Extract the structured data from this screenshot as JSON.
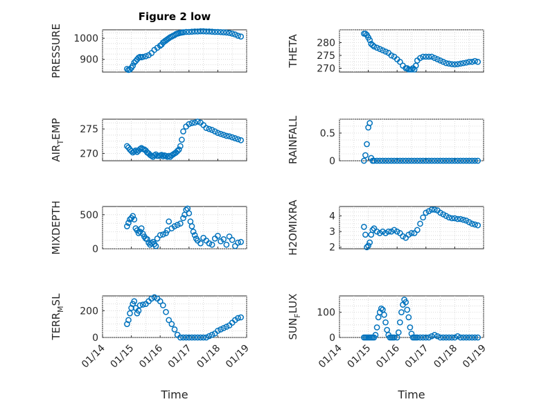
{
  "title": "Figure 2 low",
  "colors": {
    "marker": "#0072BD",
    "axis": "#262626",
    "grid": "#d0d0d0"
  },
  "x_tick_labels": [
    "01/14",
    "01/15",
    "01/16",
    "01/17",
    "01/18",
    "01/19"
  ],
  "x_label": "Time",
  "chart_data": [
    {
      "type": "scatter",
      "name": "pressure",
      "ylabel": "PRESSURE",
      "ylim": [
        840,
        1040
      ],
      "yticks": [
        900,
        1000
      ],
      "grid": true,
      "x": [
        14.85,
        14.9,
        14.95,
        15.0,
        15.05,
        15.1,
        15.15,
        15.2,
        15.25,
        15.3,
        15.35,
        15.4,
        15.5,
        15.6,
        15.7,
        15.8,
        15.9,
        16.0,
        16.05,
        16.1,
        16.15,
        16.2,
        16.25,
        16.3,
        16.35,
        16.4,
        16.45,
        16.5,
        16.55,
        16.6,
        16.65,
        16.7,
        16.75,
        16.8,
        16.9,
        17.0,
        17.1,
        17.2,
        17.3,
        17.4,
        17.5,
        17.6,
        17.7,
        17.8,
        17.9,
        18.0,
        18.1,
        18.2,
        18.3,
        18.4,
        18.5,
        18.6,
        18.7,
        18.8
      ],
      "y": [
        855,
        850,
        852,
        860,
        870,
        885,
        892,
        900,
        908,
        912,
        910,
        912,
        915,
        920,
        930,
        945,
        955,
        965,
        970,
        980,
        985,
        990,
        995,
        1000,
        1005,
        1008,
        1012,
        1015,
        1020,
        1022,
        1024,
        1026,
        1027,
        1028,
        1030,
        1030,
        1031,
        1032,
        1032,
        1033,
        1033,
        1032,
        1032,
        1031,
        1030,
        1030,
        1029,
        1028,
        1027,
        1025,
        1022,
        1018,
        1012,
        1008
      ]
    },
    {
      "type": "scatter",
      "name": "theta",
      "ylabel": "THETA",
      "ylim": [
        268.5,
        285
      ],
      "yticks": [
        270,
        275,
        280
      ],
      "grid": true,
      "x": [
        14.85,
        14.9,
        14.95,
        15.0,
        15.05,
        15.1,
        15.15,
        15.2,
        15.3,
        15.4,
        15.5,
        15.6,
        15.7,
        15.8,
        15.9,
        16.0,
        16.1,
        16.2,
        16.3,
        16.35,
        16.4,
        16.45,
        16.5,
        16.55,
        16.6,
        16.65,
        16.7,
        16.8,
        16.9,
        17.0,
        17.1,
        17.2,
        17.3,
        17.4,
        17.5,
        17.6,
        17.7,
        17.8,
        17.9,
        18.0,
        18.1,
        18.2,
        18.3,
        18.4,
        18.5,
        18.6,
        18.7,
        18.8
      ],
      "y": [
        283.5,
        283.5,
        283,
        282,
        281,
        279.5,
        279,
        278.5,
        278,
        277.5,
        277,
        276.5,
        276,
        275,
        274.5,
        273.5,
        272.5,
        271,
        270,
        270,
        269.5,
        269.5,
        269.5,
        270,
        269.5,
        271,
        273,
        274,
        274.5,
        274.5,
        274.5,
        274.5,
        274,
        273.5,
        273,
        272.5,
        272,
        271.8,
        271.6,
        271.5,
        271.6,
        271.8,
        272,
        272.2,
        272.5,
        272.5,
        272.8,
        272.5
      ]
    },
    {
      "type": "scatter",
      "name": "air_temp",
      "ylabel": "AIR_TEMP",
      "ylabel_main": "AIR",
      "ylabel_sub": "T",
      "ylabel_rest": "EMP",
      "ylim": [
        268.5,
        277
      ],
      "yticks": [
        270,
        275
      ],
      "grid": true,
      "x": [
        14.85,
        14.9,
        14.95,
        15.0,
        15.05,
        15.1,
        15.15,
        15.2,
        15.25,
        15.3,
        15.35,
        15.4,
        15.45,
        15.5,
        15.55,
        15.6,
        15.65,
        15.7,
        15.75,
        15.8,
        15.85,
        15.9,
        15.95,
        16.0,
        16.05,
        16.1,
        16.15,
        16.2,
        16.25,
        16.3,
        16.35,
        16.4,
        16.45,
        16.5,
        16.55,
        16.6,
        16.65,
        16.7,
        16.75,
        16.8,
        16.9,
        17.0,
        17.1,
        17.2,
        17.3,
        17.4,
        17.5,
        17.6,
        17.7,
        17.8,
        17.9,
        18.0,
        18.1,
        18.2,
        18.3,
        18.4,
        18.5,
        18.6,
        18.7,
        18.8
      ],
      "y": [
        271.5,
        271.2,
        270.8,
        270.5,
        270.2,
        270.4,
        270.6,
        270.3,
        270.6,
        270.9,
        271.1,
        270.9,
        270.8,
        270.6,
        270.2,
        270,
        269.7,
        269.5,
        269.3,
        269.6,
        269.8,
        269.5,
        269.5,
        269.6,
        269.7,
        269.4,
        269.6,
        269.5,
        269.3,
        269.5,
        269.3,
        269.6,
        269.8,
        270,
        270.2,
        270.5,
        270.8,
        271.5,
        272.8,
        274.5,
        275.5,
        276.0,
        276.2,
        276.3,
        276.5,
        276.3,
        275.8,
        275.2,
        275.0,
        274.8,
        274.5,
        274.2,
        274.0,
        273.8,
        273.6,
        273.5,
        273.3,
        273.1,
        272.9,
        272.7
      ]
    },
    {
      "type": "scatter",
      "name": "rainfall",
      "ylabel": "RAINFALL",
      "ylim": [
        0,
        0.75
      ],
      "yticks": [
        0,
        0.5
      ],
      "grid": true,
      "x": [
        14.85,
        14.9,
        14.95,
        15.0,
        15.05,
        15.1,
        15.15,
        15.2,
        15.3,
        15.4,
        15.5,
        15.6,
        15.7,
        15.8,
        15.9,
        16.0,
        16.1,
        16.2,
        16.3,
        16.4,
        16.5,
        16.6,
        16.7,
        16.8,
        16.9,
        17.0,
        17.1,
        17.2,
        17.3,
        17.4,
        17.5,
        17.6,
        17.7,
        17.8,
        17.9,
        18.0,
        18.1,
        18.2,
        18.3,
        18.4,
        18.5,
        18.6,
        18.7,
        18.8
      ],
      "y": [
        0.0,
        0.1,
        0.3,
        0.6,
        0.68,
        0.05,
        0.0,
        0.0,
        0.0,
        0.0,
        0.0,
        0.0,
        0.0,
        0.0,
        0.0,
        0.0,
        0.0,
        0.0,
        0.0,
        0.0,
        0.0,
        0.0,
        0.0,
        0.0,
        0.0,
        0.0,
        0.0,
        0.0,
        0.0,
        0.0,
        0.0,
        0.0,
        0.0,
        0.0,
        0.0,
        0.0,
        0.0,
        0.0,
        0.0,
        0.0,
        0.0,
        0.0,
        0.0,
        0.0
      ]
    },
    {
      "type": "scatter",
      "name": "mixdepth",
      "ylabel": "MIXDEPTH",
      "ylim": [
        0,
        620
      ],
      "yticks": [
        0,
        500
      ],
      "grid": true,
      "x": [
        14.85,
        14.9,
        14.95,
        15.0,
        15.05,
        15.1,
        15.15,
        15.2,
        15.25,
        15.3,
        15.35,
        15.4,
        15.45,
        15.5,
        15.55,
        15.6,
        15.65,
        15.7,
        15.75,
        15.8,
        15.85,
        15.9,
        16.0,
        16.1,
        16.2,
        16.25,
        16.3,
        16.4,
        16.5,
        16.6,
        16.7,
        16.8,
        16.85,
        16.9,
        16.95,
        17.0,
        17.05,
        17.1,
        17.15,
        17.2,
        17.25,
        17.3,
        17.4,
        17.5,
        17.6,
        17.7,
        17.8,
        17.9,
        18.0,
        18.1,
        18.2,
        18.3,
        18.4,
        18.5,
        18.6,
        18.7,
        18.8
      ],
      "y": [
        330,
        380,
        430,
        450,
        480,
        430,
        300,
        270,
        230,
        250,
        300,
        220,
        180,
        150,
        140,
        90,
        60,
        80,
        100,
        70,
        40,
        150,
        200,
        210,
        230,
        270,
        400,
        300,
        330,
        350,
        370,
        450,
        500,
        570,
        590,
        520,
        400,
        330,
        250,
        200,
        150,
        120,
        80,
        160,
        120,
        80,
        60,
        150,
        190,
        110,
        140,
        60,
        180,
        130,
        40,
        90,
        100
      ]
    },
    {
      "type": "scatter",
      "name": "h2omixra",
      "ylabel": "H2OMIXRA",
      "ylim": [
        1.9,
        4.6
      ],
      "yticks": [
        2,
        3,
        4
      ],
      "grid": true,
      "x": [
        14.85,
        14.9,
        14.95,
        15.0,
        15.05,
        15.1,
        15.15,
        15.2,
        15.3,
        15.4,
        15.5,
        15.6,
        15.7,
        15.8,
        15.9,
        16.0,
        16.1,
        16.2,
        16.3,
        16.4,
        16.5,
        16.6,
        16.7,
        16.8,
        16.9,
        17.0,
        17.1,
        17.2,
        17.3,
        17.4,
        17.5,
        17.6,
        17.7,
        17.8,
        17.9,
        18.0,
        18.1,
        18.2,
        18.3,
        18.4,
        18.5,
        18.6,
        18.7,
        18.8
      ],
      "y": [
        3.3,
        2.8,
        2.0,
        2.1,
        2.3,
        2.8,
        3.1,
        3.2,
        3.0,
        2.9,
        3.0,
        2.9,
        3.0,
        3.0,
        3.1,
        3.0,
        2.9,
        2.7,
        2.6,
        2.8,
        2.9,
        2.9,
        3.1,
        3.5,
        3.9,
        4.2,
        4.3,
        4.4,
        4.4,
        4.35,
        4.2,
        4.1,
        4.0,
        3.9,
        3.85,
        3.85,
        3.8,
        3.8,
        3.75,
        3.7,
        3.6,
        3.5,
        3.45,
        3.4
      ]
    },
    {
      "type": "scatter",
      "name": "terr_msl",
      "ylabel": "TERR_MSL",
      "ylabel_main": "TERR",
      "ylabel_sub": "M",
      "ylabel_rest": "SL",
      "ylim": [
        0,
        310
      ],
      "yticks": [
        0,
        200
      ],
      "grid": true,
      "x": [
        14.85,
        14.9,
        14.95,
        15.0,
        15.05,
        15.1,
        15.15,
        15.2,
        15.25,
        15.3,
        15.4,
        15.5,
        15.6,
        15.7,
        15.8,
        15.9,
        16.0,
        16.1,
        16.2,
        16.3,
        16.4,
        16.5,
        16.6,
        16.7,
        16.8,
        16.9,
        17.0,
        17.1,
        17.2,
        17.3,
        17.4,
        17.5,
        17.6,
        17.7,
        17.8,
        17.9,
        18.0,
        18.1,
        18.2,
        18.3,
        18.4,
        18.5,
        18.6,
        18.7,
        18.8
      ],
      "y": [
        100,
        130,
        180,
        220,
        250,
        270,
        220,
        180,
        200,
        240,
        245,
        250,
        270,
        290,
        300,
        290,
        270,
        240,
        190,
        130,
        100,
        60,
        20,
        0,
        0,
        0,
        0,
        0,
        0,
        0,
        0,
        0,
        0,
        10,
        20,
        30,
        50,
        60,
        70,
        80,
        90,
        110,
        130,
        145,
        150
      ]
    },
    {
      "type": "scatter",
      "name": "sun_flux",
      "ylabel": "SUN_FLUX",
      "ylabel_main": "SUN",
      "ylabel_sub": "F",
      "ylabel_rest": "LUX",
      "ylim": [
        0,
        165
      ],
      "yticks": [
        0,
        100
      ],
      "grid": true,
      "x": [
        14.85,
        14.9,
        14.95,
        15.0,
        15.05,
        15.1,
        15.15,
        15.2,
        15.25,
        15.3,
        15.35,
        15.4,
        15.45,
        15.5,
        15.55,
        15.6,
        15.65,
        15.7,
        15.75,
        15.8,
        15.85,
        15.9,
        16.0,
        16.05,
        16.1,
        16.15,
        16.2,
        16.25,
        16.3,
        16.35,
        16.4,
        16.45,
        16.5,
        16.55,
        16.6,
        16.65,
        16.7,
        16.8,
        16.9,
        17.0,
        17.1,
        17.2,
        17.3,
        17.4,
        17.5,
        17.6,
        17.7,
        17.8,
        17.9,
        18.0,
        18.1,
        18.2,
        18.3,
        18.4,
        18.5,
        18.6,
        18.7,
        18.8
      ],
      "y": [
        0,
        0,
        0,
        0,
        0,
        0,
        0,
        0,
        10,
        40,
        80,
        100,
        115,
        110,
        90,
        60,
        30,
        10,
        0,
        0,
        0,
        0,
        0,
        20,
        60,
        100,
        130,
        150,
        140,
        110,
        80,
        40,
        15,
        0,
        0,
        0,
        0,
        0,
        0,
        0,
        0,
        5,
        10,
        5,
        0,
        0,
        0,
        0,
        0,
        0,
        5,
        0,
        0,
        0,
        0,
        0,
        0,
        0
      ]
    }
  ]
}
